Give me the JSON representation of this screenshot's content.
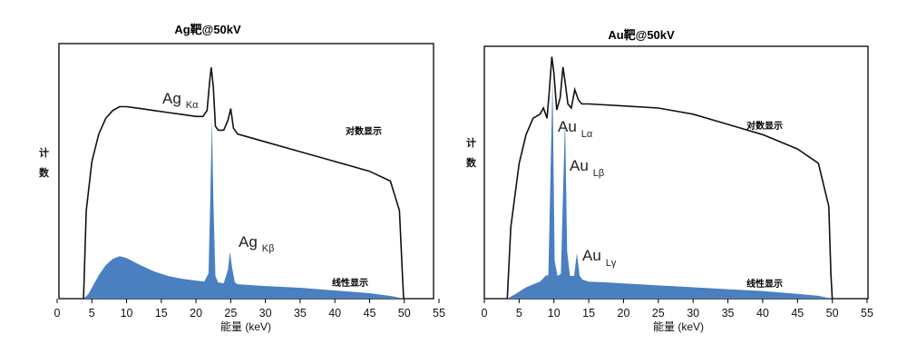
{
  "chart_data": [
    {
      "type": "area",
      "title": "Ag靶@50kV",
      "xlabel": "能量 (keV)",
      "ylabel_chars": [
        "计",
        "数"
      ],
      "xlim": [
        0,
        55
      ],
      "xticks": [
        0,
        5,
        10,
        15,
        20,
        25,
        30,
        35,
        40,
        45,
        50,
        55
      ],
      "grid": false,
      "series": [
        {
          "name": "对数显示",
          "scale": "log",
          "x": [
            3.8,
            4.2,
            5,
            6,
            7,
            8,
            9,
            10,
            12,
            14,
            16,
            18,
            20,
            21,
            21.6,
            22.0,
            22.2,
            22.5,
            22.8,
            23.2,
            24,
            24.6,
            25.0,
            25.4,
            26,
            30,
            35,
            40,
            45,
            48,
            49.3,
            49.7,
            49.9
          ],
          "values": [
            0,
            45,
            70,
            84,
            92,
            96,
            98,
            98,
            97,
            96,
            95,
            94,
            93,
            93,
            96,
            112,
            118,
            108,
            88,
            86,
            86,
            91,
            97,
            87,
            84,
            80,
            75,
            70,
            65,
            60,
            45,
            15,
            0
          ]
        },
        {
          "name": "线性显示",
          "scale": "linear",
          "x": [
            3.8,
            4.5,
            5,
            6,
            7,
            8,
            9,
            10,
            11,
            12,
            14,
            16,
            18,
            20,
            21.2,
            21.8,
            22.0,
            22.3,
            22.5,
            22.8,
            23.2,
            24,
            24.6,
            24.9,
            25.2,
            25.6,
            26,
            28,
            30,
            35,
            40,
            45,
            48,
            50
          ],
          "values": [
            0,
            5,
            12,
            26,
            37,
            44,
            47,
            45,
            41,
            37,
            30,
            25,
            22,
            20,
            19,
            28,
            90,
            200,
            110,
            25,
            18,
            17,
            32,
            52,
            34,
            18,
            16,
            15,
            14,
            12,
            9,
            6,
            3,
            0
          ]
        }
      ],
      "annotations": [
        {
          "main": "Ag",
          "sub": "Kα"
        },
        {
          "main": "Ag",
          "sub": "Kβ"
        }
      ]
    },
    {
      "type": "area",
      "title": "Au靶@50kV",
      "xlabel": "能量 (keV)",
      "ylabel_chars": [
        "计",
        "数"
      ],
      "xlim": [
        0,
        55
      ],
      "xticks": [
        0,
        5,
        10,
        15,
        20,
        25,
        30,
        35,
        40,
        45,
        50,
        55
      ],
      "grid": false,
      "series": [
        {
          "name": "对数显示",
          "scale": "log",
          "x": [
            3.3,
            3.8,
            5,
            6,
            7,
            8,
            8.5,
            9.0,
            9.3,
            9.7,
            10.0,
            10.4,
            10.9,
            11.3,
            11.6,
            12.0,
            12.5,
            13.0,
            13.5,
            14.0,
            15,
            20,
            25,
            30,
            35,
            40,
            45,
            48,
            49.5,
            49.8,
            50.0
          ],
          "values": [
            0,
            35,
            66,
            80,
            88,
            90,
            93,
            88,
            100,
            118,
            110,
            92,
            98,
            113,
            106,
            95,
            93,
            102,
            97,
            95,
            95,
            94,
            93,
            90,
            85,
            80,
            73,
            66,
            45,
            12,
            0
          ]
        },
        {
          "name": "线性显示",
          "scale": "linear",
          "x": [
            3.3,
            4.5,
            6,
            8,
            8.8,
            9.2,
            9.5,
            9.8,
            10.1,
            10.5,
            11.0,
            11.3,
            11.6,
            11.9,
            12.3,
            12.9,
            13.3,
            13.7,
            14.1,
            15,
            18,
            20,
            25,
            30,
            35,
            40,
            45,
            48,
            50
          ],
          "values": [
            0,
            5,
            12,
            18,
            24,
            25,
            130,
            232,
            40,
            24,
            26,
            110,
            190,
            50,
            24,
            24,
            48,
            24,
            20,
            18,
            17,
            16,
            14,
            12,
            10,
            8,
            5,
            3,
            0
          ]
        }
      ],
      "annotations": [
        {
          "main": "Au",
          "sub": "Lα"
        },
        {
          "main": "Au",
          "sub": "Lβ"
        },
        {
          "main": "Au",
          "sub": "Lγ"
        }
      ]
    }
  ]
}
